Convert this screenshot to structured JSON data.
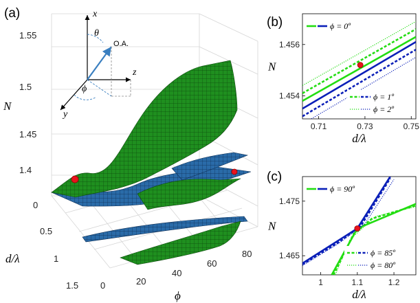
{
  "colors": {
    "green": "#22dd11",
    "blue": "#0a1fb8",
    "red": "#e8141e",
    "surface_green": "#1c8a1c",
    "surface_blue": "#1f5f9a",
    "arrow": "#3a7fc0"
  },
  "panel_a": {
    "label": "(a)",
    "z_ticks": [
      "1.55",
      "1.5",
      "1.45",
      "1.4"
    ],
    "z_label": "N",
    "y_ticks": [
      "0",
      "0.5",
      "1",
      "1.5"
    ],
    "y_label": "d/λ",
    "x_ticks": [
      "0",
      "20",
      "40",
      "60",
      "80"
    ],
    "x_label": "ϕ",
    "inset": {
      "x": "x",
      "y": "y",
      "z": "z",
      "theta": "θ",
      "phi": "ϕ",
      "oa": "O.A."
    }
  },
  "chart_data": [
    {
      "type": "line",
      "panel": "(b)",
      "xlabel": "d/λ",
      "ylabel": "N",
      "xlim": [
        0.703,
        0.752
      ],
      "ylim": [
        1.4531,
        1.4572
      ],
      "x_ticks": [
        "0.71",
        "0.73",
        "0.75"
      ],
      "y_ticks": [
        "1.454",
        "1.456"
      ],
      "series": [
        {
          "name": "ϕ = 0º",
          "color": "green",
          "style": "solid",
          "x": [
            0.703,
            0.752
          ],
          "y": [
            1.4538,
            1.4563
          ]
        },
        {
          "name": "ϕ = 0º",
          "color": "blue",
          "style": "solid",
          "x": [
            0.703,
            0.752
          ],
          "y": [
            1.4535,
            1.4561
          ]
        },
        {
          "name": "ϕ = 1º",
          "color": "green",
          "style": "dashed",
          "x": [
            0.703,
            0.752
          ],
          "y": [
            1.4541,
            1.4566
          ]
        },
        {
          "name": "ϕ = 1º",
          "color": "blue",
          "style": "dashed",
          "x": [
            0.703,
            0.752
          ],
          "y": [
            1.4532,
            1.4558
          ]
        },
        {
          "name": "ϕ = 2º",
          "color": "green",
          "style": "dotted",
          "x": [
            0.703,
            0.752
          ],
          "y": [
            1.4544,
            1.4569
          ]
        },
        {
          "name": "ϕ = 2º",
          "color": "blue",
          "style": "dotted",
          "x": [
            0.703,
            0.752
          ],
          "y": [
            1.4529,
            1.4555
          ]
        }
      ],
      "marker": {
        "x": 0.728,
        "y": 1.4552
      },
      "legend": [
        "ϕ = 0º",
        "ϕ = 1º",
        "ϕ = 2º"
      ]
    },
    {
      "type": "line",
      "panel": "(c)",
      "xlabel": "d/λ",
      "ylabel": "N",
      "xlim": [
        0.95,
        1.26
      ],
      "ylim": [
        1.4615,
        1.4795
      ],
      "x_ticks": [
        "1",
        "1.1",
        "1.2"
      ],
      "y_ticks": [
        "1.465",
        "1.475"
      ],
      "series": [
        {
          "name": "ϕ = 90º",
          "color": "blue",
          "style": "solid",
          "x": [
            0.95,
            1.1,
            1.19
          ],
          "y": [
            1.4636,
            1.47,
            1.4795
          ]
        },
        {
          "name": "ϕ = 90º",
          "color": "green",
          "style": "solid",
          "x": [
            1.03,
            1.1,
            1.26
          ],
          "y": [
            1.4615,
            1.47,
            1.4745
          ]
        },
        {
          "name": "ϕ = 85º",
          "color": "blue",
          "style": "dashed",
          "x": [
            0.95,
            1.05,
            1.11,
            1.19
          ],
          "y": [
            1.4634,
            1.4675,
            1.4705,
            1.4792
          ]
        },
        {
          "name": "ϕ = 85º",
          "color": "green",
          "style": "dashed",
          "x": [
            1.035,
            1.09,
            1.14,
            1.26
          ],
          "y": [
            1.4615,
            1.469,
            1.4718,
            1.4742
          ]
        },
        {
          "name": "ϕ = 80º",
          "color": "blue",
          "style": "dotted",
          "x": [
            0.95,
            1.05,
            1.12,
            1.2
          ],
          "y": [
            1.4632,
            1.4673,
            1.4708,
            1.479
          ]
        },
        {
          "name": "ϕ = 80º",
          "color": "green",
          "style": "dotted",
          "x": [
            1.04,
            1.08,
            1.15,
            1.26
          ],
          "y": [
            1.4615,
            1.468,
            1.4722,
            1.474
          ]
        }
      ],
      "marker": {
        "x": 1.1,
        "y": 1.47
      },
      "legend": [
        "ϕ = 90º",
        "ϕ = 85º",
        "ϕ = 80º"
      ]
    }
  ],
  "panel_b_label": "(b)",
  "panel_c_label": "(c)"
}
